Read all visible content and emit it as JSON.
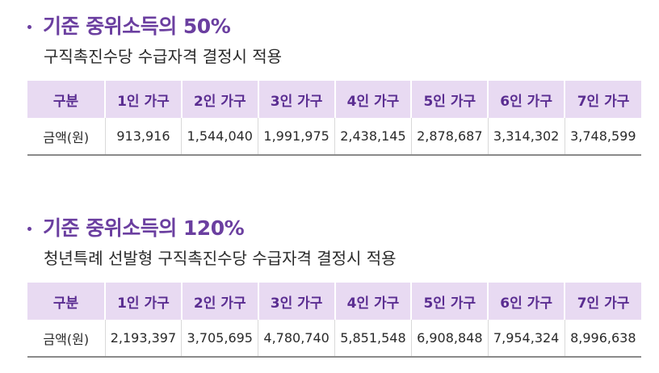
{
  "sections": [
    {
      "heading": "기준 중위소득의 50%",
      "subtitle": "구직촉진수당 수급자격 결정시 적용",
      "headers": [
        "구분",
        "1인 가구",
        "2인 가구",
        "3인 가구",
        "4인 가구",
        "5인 가구",
        "6인 가구",
        "7인 가구"
      ],
      "row_label": "금액(원)",
      "values": [
        "913,916",
        "1,544,040",
        "1,991,975",
        "2,438,145",
        "2,878,687",
        "3,314,302",
        "3,748,599"
      ]
    },
    {
      "heading": "기준 중위소득의 120%",
      "subtitle": "청년특례 선발형 구직촉진수당 수급자격 결정시 적용",
      "headers": [
        "구분",
        "1인 가구",
        "2인 가구",
        "3인 가구",
        "4인 가구",
        "5인 가구",
        "6인 가구",
        "7인 가구"
      ],
      "row_label": "금액(원)",
      "values": [
        "2,193,397",
        "3,705,695",
        "4,780,740",
        "5,851,548",
        "6,908,848",
        "7,954,324",
        "8,996,638"
      ]
    }
  ],
  "colors": {
    "accent": "#6b3fa0",
    "header_bg": "#e8daf2",
    "header_text": "#5a2d91",
    "body_text": "#2a2a2a"
  }
}
